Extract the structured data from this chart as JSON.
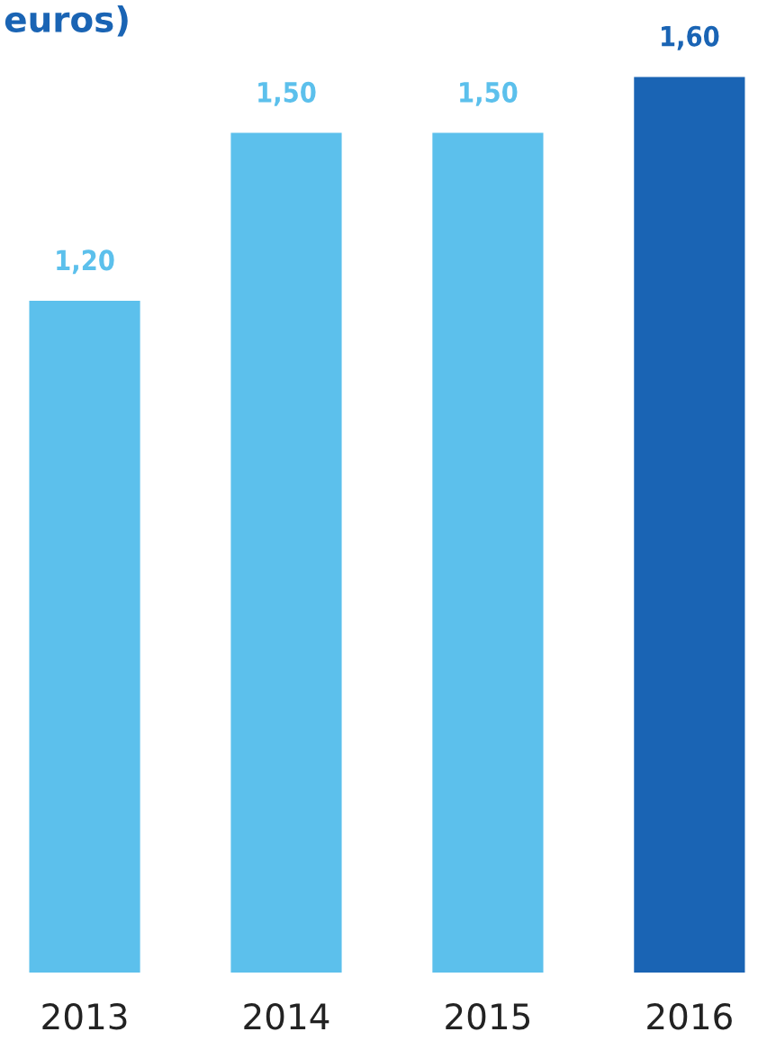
{
  "chart_data": {
    "type": "bar",
    "title": "euros)",
    "categories": [
      "2013",
      "2014",
      "2015",
      "2016"
    ],
    "values": [
      1.2,
      1.5,
      1.5,
      1.6
    ],
    "value_labels": [
      "1,20",
      "1,50",
      "1,50",
      "1,60"
    ],
    "colors": [
      "#5cc0ec",
      "#5cc0ec",
      "#5cc0ec",
      "#1a64b4"
    ],
    "grid": false,
    "legend": false
  }
}
